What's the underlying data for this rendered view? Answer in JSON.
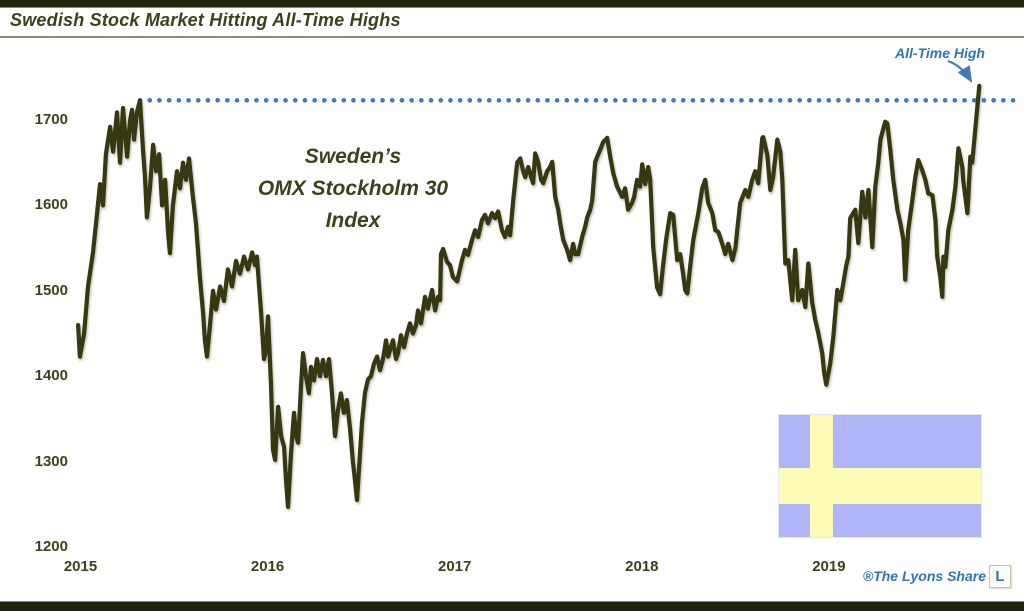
{
  "header": {
    "title": "Swedish Stock Market Hitting All-Time Highs"
  },
  "footer": {
    "credit": "®The Lyons Share",
    "logo_letter": "L"
  },
  "colors": {
    "line": "#373711",
    "text_olive": "#3d411a",
    "annotation_blue": "#2e74b5",
    "dotted_blue": "#4479b8",
    "flag_blue": "#b0b4f8",
    "flag_yellow": "#fbfbb6",
    "bar": "#23240c"
  },
  "chart_data": {
    "type": "line",
    "title": "Swedish Stock Market Hitting All-Time Highs",
    "series_label_lines": [
      "Sweden’s",
      "OMX Stockholm 30",
      "Index"
    ],
    "annotation_label": "All-Time High",
    "xlabel": "",
    "ylabel": "",
    "x_ticks": [
      2015,
      2016,
      2017,
      2018,
      2019
    ],
    "y_ticks": [
      1200,
      1300,
      1400,
      1500,
      1600,
      1700
    ],
    "ylim": [
      1200,
      1760
    ],
    "xlim": [
      2014.98,
      2020.0
    ],
    "grid": false,
    "legend": "none",
    "all_time_high_level": 1723,
    "ath_line_start_x": 2015.318,
    "points": [
      [
        2014.987,
        1460
      ],
      [
        2014.997,
        1423
      ],
      [
        2015.019,
        1450
      ],
      [
        2015.04,
        1505
      ],
      [
        2015.067,
        1545
      ],
      [
        2015.088,
        1590
      ],
      [
        2015.104,
        1625
      ],
      [
        2015.12,
        1600
      ],
      [
        2015.136,
        1660
      ],
      [
        2015.158,
        1692
      ],
      [
        2015.174,
        1663
      ],
      [
        2015.195,
        1709
      ],
      [
        2015.211,
        1650
      ],
      [
        2015.227,
        1714
      ],
      [
        2015.249,
        1657
      ],
      [
        2015.265,
        1700
      ],
      [
        2015.275,
        1712
      ],
      [
        2015.286,
        1677
      ],
      [
        2015.302,
        1710
      ],
      [
        2015.318,
        1723
      ],
      [
        2015.334,
        1665
      ],
      [
        2015.345,
        1633
      ],
      [
        2015.355,
        1586
      ],
      [
        2015.371,
        1620
      ],
      [
        2015.388,
        1671
      ],
      [
        2015.404,
        1640
      ],
      [
        2015.42,
        1660
      ],
      [
        2015.436,
        1600
      ],
      [
        2015.452,
        1630
      ],
      [
        2015.468,
        1568
      ],
      [
        2015.478,
        1544
      ],
      [
        2015.494,
        1600
      ],
      [
        2015.516,
        1640
      ],
      [
        2015.532,
        1620
      ],
      [
        2015.548,
        1650
      ],
      [
        2015.564,
        1630
      ],
      [
        2015.58,
        1655
      ],
      [
        2015.601,
        1610
      ],
      [
        2015.617,
        1580
      ],
      [
        2015.639,
        1513
      ],
      [
        2015.655,
        1474
      ],
      [
        2015.665,
        1442
      ],
      [
        2015.676,
        1423
      ],
      [
        2015.692,
        1460
      ],
      [
        2015.708,
        1500
      ],
      [
        2015.724,
        1478
      ],
      [
        2015.746,
        1505
      ],
      [
        2015.767,
        1488
      ],
      [
        2015.788,
        1525
      ],
      [
        2015.81,
        1505
      ],
      [
        2015.831,
        1535
      ],
      [
        2015.852,
        1520
      ],
      [
        2015.874,
        1540
      ],
      [
        2015.895,
        1525
      ],
      [
        2015.917,
        1545
      ],
      [
        2015.933,
        1530
      ],
      [
        2015.943,
        1540
      ],
      [
        2015.965,
        1474
      ],
      [
        2015.981,
        1420
      ],
      [
        2015.991,
        1430
      ],
      [
        2016.002,
        1470
      ],
      [
        2016.018,
        1390
      ],
      [
        2016.029,
        1314
      ],
      [
        2016.04,
        1302
      ],
      [
        2016.056,
        1364
      ],
      [
        2016.072,
        1330
      ],
      [
        2016.088,
        1317
      ],
      [
        2016.098,
        1280
      ],
      [
        2016.109,
        1247
      ],
      [
        2016.125,
        1310
      ],
      [
        2016.141,
        1357
      ],
      [
        2016.152,
        1330
      ],
      [
        2016.163,
        1322
      ],
      [
        2016.179,
        1390
      ],
      [
        2016.189,
        1427
      ],
      [
        2016.205,
        1400
      ],
      [
        2016.221,
        1380
      ],
      [
        2016.232,
        1411
      ],
      [
        2016.248,
        1395
      ],
      [
        2016.264,
        1420
      ],
      [
        2016.28,
        1400
      ],
      [
        2016.296,
        1419
      ],
      [
        2016.312,
        1400
      ],
      [
        2016.328,
        1420
      ],
      [
        2016.344,
        1380
      ],
      [
        2016.36,
        1330
      ],
      [
        2016.376,
        1360
      ],
      [
        2016.392,
        1380
      ],
      [
        2016.408,
        1357
      ],
      [
        2016.424,
        1372
      ],
      [
        2016.44,
        1340
      ],
      [
        2016.456,
        1300
      ],
      [
        2016.467,
        1278
      ],
      [
        2016.478,
        1255
      ],
      [
        2016.494,
        1310
      ],
      [
        2016.504,
        1345
      ],
      [
        2016.52,
        1380
      ],
      [
        2016.536,
        1396
      ],
      [
        2016.552,
        1400
      ],
      [
        2016.569,
        1415
      ],
      [
        2016.585,
        1423
      ],
      [
        2016.601,
        1407
      ],
      [
        2016.617,
        1420
      ],
      [
        2016.633,
        1442
      ],
      [
        2016.644,
        1423
      ],
      [
        2016.66,
        1435
      ],
      [
        2016.67,
        1442
      ],
      [
        2016.686,
        1420
      ],
      [
        2016.697,
        1427
      ],
      [
        2016.713,
        1448
      ],
      [
        2016.729,
        1434
      ],
      [
        2016.745,
        1450
      ],
      [
        2016.761,
        1462
      ],
      [
        2016.777,
        1450
      ],
      [
        2016.793,
        1460
      ],
      [
        2016.804,
        1477
      ],
      [
        2016.82,
        1462
      ],
      [
        2016.841,
        1493
      ],
      [
        2016.857,
        1479
      ],
      [
        2016.879,
        1501
      ],
      [
        2016.895,
        1477
      ],
      [
        2016.911,
        1493
      ],
      [
        2016.922,
        1489
      ],
      [
        2016.927,
        1543
      ],
      [
        2016.938,
        1549
      ],
      [
        2016.959,
        1534
      ],
      [
        2016.975,
        1530
      ],
      [
        2016.991,
        1516
      ],
      [
        2017.013,
        1511
      ],
      [
        2017.039,
        1536
      ],
      [
        2017.055,
        1548
      ],
      [
        2017.071,
        1542
      ],
      [
        2017.093,
        1560
      ],
      [
        2017.109,
        1571
      ],
      [
        2017.125,
        1563
      ],
      [
        2017.146,
        1583
      ],
      [
        2017.162,
        1589
      ],
      [
        2017.178,
        1579
      ],
      [
        2017.2,
        1591
      ],
      [
        2017.216,
        1585
      ],
      [
        2017.232,
        1593
      ],
      [
        2017.253,
        1571
      ],
      [
        2017.269,
        1563
      ],
      [
        2017.285,
        1575
      ],
      [
        2017.296,
        1565
      ],
      [
        2017.312,
        1605
      ],
      [
        2017.334,
        1650
      ],
      [
        2017.35,
        1655
      ],
      [
        2017.366,
        1640
      ],
      [
        2017.377,
        1633
      ],
      [
        2017.393,
        1645
      ],
      [
        2017.419,
        1626
      ],
      [
        2017.43,
        1661
      ],
      [
        2017.446,
        1651
      ],
      [
        2017.462,
        1630
      ],
      [
        2017.473,
        1626
      ],
      [
        2017.494,
        1640
      ],
      [
        2017.51,
        1645
      ],
      [
        2017.521,
        1651
      ],
      [
        2017.537,
        1610
      ],
      [
        2017.553,
        1595
      ],
      [
        2017.564,
        1579
      ],
      [
        2017.58,
        1560
      ],
      [
        2017.601,
        1548
      ],
      [
        2017.617,
        1536
      ],
      [
        2017.633,
        1555
      ],
      [
        2017.644,
        1543
      ],
      [
        2017.66,
        1543
      ],
      [
        2017.681,
        1563
      ],
      [
        2017.697,
        1575
      ],
      [
        2017.708,
        1586
      ],
      [
        2017.724,
        1595
      ],
      [
        2017.735,
        1606
      ],
      [
        2017.751,
        1651
      ],
      [
        2017.767,
        1660
      ],
      [
        2017.777,
        1665
      ],
      [
        2017.793,
        1674
      ],
      [
        2017.815,
        1679
      ],
      [
        2017.831,
        1657
      ],
      [
        2017.847,
        1638
      ],
      [
        2017.868,
        1622
      ],
      [
        2017.884,
        1615
      ],
      [
        2017.895,
        1610
      ],
      [
        2017.911,
        1620
      ],
      [
        2017.927,
        1595
      ],
      [
        2017.948,
        1603
      ],
      [
        2017.959,
        1610
      ],
      [
        2017.975,
        1630
      ],
      [
        2017.991,
        1622
      ],
      [
        2018.002,
        1648
      ],
      [
        2018.018,
        1625
      ],
      [
        2018.034,
        1645
      ],
      [
        2018.045,
        1630
      ],
      [
        2018.061,
        1551
      ],
      [
        2018.082,
        1504
      ],
      [
        2018.098,
        1496
      ],
      [
        2018.114,
        1530
      ],
      [
        2018.13,
        1560
      ],
      [
        2018.152,
        1591
      ],
      [
        2018.168,
        1589
      ],
      [
        2018.189,
        1536
      ],
      [
        2018.205,
        1543
      ],
      [
        2018.221,
        1520
      ],
      [
        2018.232,
        1501
      ],
      [
        2018.243,
        1497
      ],
      [
        2018.259,
        1530
      ],
      [
        2018.275,
        1560
      ],
      [
        2018.302,
        1591
      ],
      [
        2018.323,
        1620
      ],
      [
        2018.339,
        1630
      ],
      [
        2018.355,
        1603
      ],
      [
        2018.377,
        1591
      ],
      [
        2018.393,
        1571
      ],
      [
        2018.409,
        1569
      ],
      [
        2018.43,
        1555
      ],
      [
        2018.446,
        1543
      ],
      [
        2018.462,
        1555
      ],
      [
        2018.484,
        1536
      ],
      [
        2018.5,
        1550
      ],
      [
        2018.51,
        1571
      ],
      [
        2018.526,
        1603
      ],
      [
        2018.553,
        1618
      ],
      [
        2018.569,
        1610
      ],
      [
        2018.59,
        1630
      ],
      [
        2018.606,
        1640
      ],
      [
        2018.622,
        1626
      ],
      [
        2018.644,
        1679
      ],
      [
        2018.649,
        1680
      ],
      [
        2018.671,
        1659
      ],
      [
        2018.687,
        1618
      ],
      [
        2018.702,
        1633
      ],
      [
        2018.724,
        1677
      ],
      [
        2018.74,
        1663
      ],
      [
        2018.751,
        1630
      ],
      [
        2018.767,
        1532
      ],
      [
        2018.783,
        1536
      ],
      [
        2018.804,
        1489
      ],
      [
        2018.82,
        1548
      ],
      [
        2018.836,
        1489
      ],
      [
        2018.858,
        1501
      ],
      [
        2018.874,
        1481
      ],
      [
        2018.89,
        1532
      ],
      [
        2018.911,
        1486
      ],
      [
        2018.927,
        1466
      ],
      [
        2018.943,
        1451
      ],
      [
        2018.964,
        1427
      ],
      [
        2018.975,
        1404
      ],
      [
        2018.986,
        1390
      ],
      [
        2019.007,
        1415
      ],
      [
        2019.023,
        1445
      ],
      [
        2019.045,
        1501
      ],
      [
        2019.061,
        1489
      ],
      [
        2019.077,
        1509
      ],
      [
        2019.093,
        1530
      ],
      [
        2019.104,
        1540
      ],
      [
        2019.114,
        1585
      ],
      [
        2019.13,
        1591
      ],
      [
        2019.141,
        1595
      ],
      [
        2019.157,
        1556
      ],
      [
        2019.178,
        1616
      ],
      [
        2019.195,
        1586
      ],
      [
        2019.211,
        1618
      ],
      [
        2019.232,
        1551
      ],
      [
        2019.248,
        1622
      ],
      [
        2019.264,
        1650
      ],
      [
        2019.275,
        1677
      ],
      [
        2019.301,
        1698
      ],
      [
        2019.312,
        1696
      ],
      [
        2019.328,
        1665
      ],
      [
        2019.344,
        1630
      ],
      [
        2019.366,
        1595
      ],
      [
        2019.382,
        1579
      ],
      [
        2019.398,
        1560
      ],
      [
        2019.408,
        1513
      ],
      [
        2019.424,
        1571
      ],
      [
        2019.446,
        1606
      ],
      [
        2019.462,
        1633
      ],
      [
        2019.478,
        1653
      ],
      [
        2019.499,
        1641
      ],
      [
        2019.515,
        1630
      ],
      [
        2019.531,
        1614
      ],
      [
        2019.553,
        1612
      ],
      [
        2019.569,
        1583
      ],
      [
        2019.579,
        1540
      ],
      [
        2019.595,
        1517
      ],
      [
        2019.606,
        1493
      ],
      [
        2019.612,
        1540
      ],
      [
        2019.622,
        1528
      ],
      [
        2019.638,
        1571
      ],
      [
        2019.66,
        1595
      ],
      [
        2019.676,
        1622
      ],
      [
        2019.692,
        1667
      ],
      [
        2019.713,
        1645
      ],
      [
        2019.718,
        1630
      ],
      [
        2019.74,
        1591
      ],
      [
        2019.745,
        1610
      ],
      [
        2019.756,
        1657
      ],
      [
        2019.766,
        1650
      ],
      [
        2019.782,
        1688
      ],
      [
        2019.793,
        1715
      ],
      [
        2019.804,
        1740
      ]
    ]
  }
}
